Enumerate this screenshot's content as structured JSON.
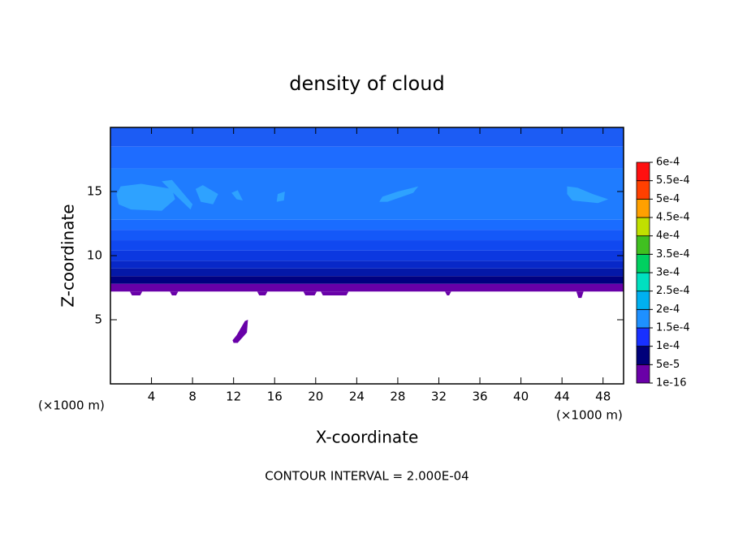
{
  "chart_data": {
    "type": "contour",
    "title": "density of cloud",
    "x_label": "X-coordinate",
    "y_label": "Z-coordinate",
    "x_unit": "(×1000 m)",
    "footer": "CONTOUR INTERVAL = 2.000E-04",
    "xlim": [
      0,
      50
    ],
    "ylim": [
      0,
      20
    ],
    "xticks": [
      4,
      8,
      12,
      16,
      20,
      24,
      28,
      32,
      36,
      40,
      44,
      48
    ],
    "yticks": [
      5,
      10,
      15
    ],
    "bands": [
      {
        "zlim": [
          18.5,
          20
        ],
        "color": "#1c5cf4"
      },
      {
        "zlim": [
          16.8,
          18.5
        ],
        "color": "#1e6cff"
      },
      {
        "zlim": [
          12.8,
          16.8
        ],
        "color": "#1f7cff"
      },
      {
        "zlim": [
          12.0,
          12.8
        ],
        "color": "#1a6cff"
      },
      {
        "zlim": [
          11.2,
          12.0
        ],
        "color": "#1458f8"
      },
      {
        "zlim": [
          10.4,
          11.2
        ],
        "color": "#1048f0"
      },
      {
        "zlim": [
          9.6,
          10.4
        ],
        "color": "#0c38e0"
      },
      {
        "zlim": [
          9.0,
          9.6
        ],
        "color": "#0828c8"
      },
      {
        "zlim": [
          8.4,
          9.0
        ],
        "color": "#0418a8"
      },
      {
        "zlim": [
          7.8,
          8.4
        ],
        "color": "#000080"
      },
      {
        "zlim": [
          7.2,
          7.8
        ],
        "color": "#6800a8"
      }
    ],
    "patches": [
      {
        "x": [
          0.6,
          1,
          3,
          6,
          6.3,
          5,
          2,
          0.8
        ],
        "z": [
          14.8,
          15.4,
          15.6,
          15.2,
          14.4,
          13.5,
          13.6,
          14
        ],
        "color": "#2ea2ff"
      },
      {
        "x": [
          5,
          6,
          8,
          7.8,
          6.5
        ],
        "z": [
          15.8,
          15.9,
          14,
          13.6,
          14.6
        ],
        "color": "#2ea2ff"
      },
      {
        "x": [
          8.3,
          9,
          10.5,
          10,
          8.8
        ],
        "z": [
          15.2,
          15.5,
          14.8,
          14,
          14.2
        ],
        "color": "#2ea2ff"
      },
      {
        "x": [
          11.8,
          12.4,
          12.9,
          12.3
        ],
        "z": [
          14.9,
          15.1,
          14.3,
          14.4
        ],
        "color": "#2ea2ff"
      },
      {
        "x": [
          16.3,
          17,
          16.9,
          16.2
        ],
        "z": [
          14.8,
          15,
          14.3,
          14.2
        ],
        "color": "#2ea2ff"
      },
      {
        "x": [
          26.5,
          28,
          30,
          29.5,
          27,
          26.2
        ],
        "z": [
          14.6,
          15.0,
          15.4,
          14.9,
          14.2,
          14.2
        ],
        "color": "#2ea2ff"
      },
      {
        "x": [
          44.5,
          45.5,
          47,
          48.5,
          47.5,
          45,
          44.5
        ],
        "z": [
          15.4,
          15.3,
          14.8,
          14.4,
          14.1,
          14.3,
          14.8
        ],
        "color": "#2ea2ff"
      },
      {
        "x": [
          1.9,
          3.1,
          2.9,
          2.1
        ],
        "z": [
          7.2,
          7.2,
          6.9,
          6.9
        ],
        "color": "#6800a8"
      },
      {
        "x": [
          5.8,
          6.6,
          6.4,
          6.0
        ],
        "z": [
          7.2,
          7.2,
          6.9,
          6.9
        ],
        "color": "#6800a8"
      },
      {
        "x": [
          14.3,
          15.3,
          15.1,
          14.5
        ],
        "z": [
          7.2,
          7.2,
          6.9,
          6.9
        ],
        "color": "#6800a8"
      },
      {
        "x": [
          18.8,
          20.1,
          19.9,
          19.0
        ],
        "z": [
          7.2,
          7.2,
          6.9,
          6.9
        ],
        "color": "#6800a8"
      },
      {
        "x": [
          20.5,
          23.2,
          23.0,
          20.7
        ],
        "z": [
          7.2,
          7.2,
          6.9,
          6.9
        ],
        "color": "#6800a8"
      },
      {
        "x": [
          32.6,
          33.2,
          33.0,
          32.8
        ],
        "z": [
          7.2,
          7.2,
          6.9,
          6.9
        ],
        "color": "#6800a8"
      },
      {
        "x": [
          45.4,
          46.1,
          45.9,
          45.6
        ],
        "z": [
          7.2,
          7.2,
          6.7,
          6.7
        ],
        "color": "#6800a8"
      },
      {
        "x": [
          12,
          12.4,
          13.3,
          13.4,
          13.1,
          12.3,
          11.9
        ],
        "z": [
          3.2,
          3.2,
          4.0,
          5.0,
          4.9,
          3.8,
          3.4
        ],
        "color": "#6800a8"
      }
    ],
    "colorbar": {
      "ticks": [
        {
          "value": 1e-16,
          "label": "1e-16"
        },
        {
          "value": 5e-05,
          "label": "5e-5"
        },
        {
          "value": 0.0001,
          "label": "1e-4"
        },
        {
          "value": 0.00015,
          "label": "1.5e-4"
        },
        {
          "value": 0.0002,
          "label": "2e-4"
        },
        {
          "value": 0.00025,
          "label": "2.5e-4"
        },
        {
          "value": 0.0003,
          "label": "3e-4"
        },
        {
          "value": 0.00035,
          "label": "3.5e-4"
        },
        {
          "value": 0.0004,
          "label": "4e-4"
        },
        {
          "value": 0.00045,
          "label": "4.5e-4"
        },
        {
          "value": 0.0005,
          "label": "5e-4"
        },
        {
          "value": 0.00055,
          "label": "5.5e-4"
        },
        {
          "value": 0.0006,
          "label": "6e-4"
        }
      ],
      "colors": [
        "#6a00a8",
        "#00007a",
        "#1830ff",
        "#1e90ff",
        "#00b0f0",
        "#00e0c0",
        "#00d060",
        "#40c020",
        "#c0e000",
        "#ffa000",
        "#ff4000",
        "#ff1010",
        "#ff8080"
      ]
    }
  }
}
